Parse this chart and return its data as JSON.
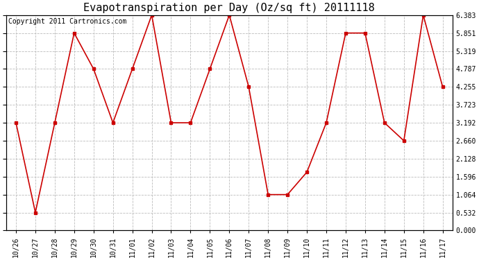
{
  "title": "Evapotranspiration per Day (Oz/sq ft) 20111118",
  "copyright": "Copyright 2011 Cartronics.com",
  "x_labels": [
    "10/26",
    "10/27",
    "10/28",
    "10/29",
    "10/30",
    "10/31",
    "11/01",
    "11/02",
    "11/03",
    "11/04",
    "11/05",
    "11/06",
    "11/07",
    "11/08",
    "11/09",
    "11/10",
    "11/11",
    "11/12",
    "11/13",
    "11/14",
    "11/15",
    "11/16",
    "11/17"
  ],
  "y_values": [
    3.192,
    0.532,
    3.192,
    5.851,
    4.787,
    3.192,
    4.787,
    6.383,
    3.192,
    3.192,
    4.787,
    6.383,
    4.255,
    1.064,
    1.064,
    1.729,
    3.192,
    5.851,
    5.851,
    3.192,
    2.66,
    6.383,
    4.255
  ],
  "line_color": "#cc0000",
  "marker": "s",
  "marker_size": 3,
  "bg_color": "#ffffff",
  "grid_color": "#bbbbbb",
  "ylim": [
    0.0,
    6.383
  ],
  "yticks": [
    0.0,
    0.532,
    1.064,
    1.596,
    2.128,
    2.66,
    3.192,
    3.723,
    4.255,
    4.787,
    5.319,
    5.851,
    6.383
  ],
  "title_fontsize": 11,
  "copyright_fontsize": 7,
  "tick_fontsize": 7,
  "linewidth": 1.2
}
